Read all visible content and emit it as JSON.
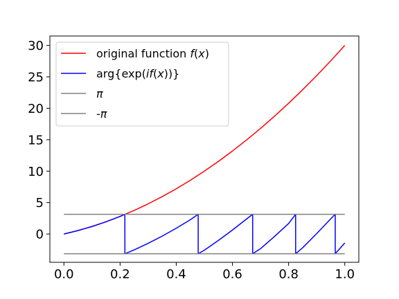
{
  "chart_data": {
    "type": "line",
    "xlim": [
      -0.05,
      1.05
    ],
    "ylim": [
      -4.5,
      31.5
    ],
    "xticks": [
      0.0,
      0.2,
      0.4,
      0.6,
      0.8,
      1.0
    ],
    "xtick_labels": [
      "0.0",
      "0.2",
      "0.4",
      "0.6",
      "0.8",
      "1.0"
    ],
    "yticks": [
      0,
      5,
      10,
      15,
      20,
      25,
      30
    ],
    "ytick_labels": [
      "0",
      "5",
      "10",
      "15",
      "20",
      "25",
      "30"
    ],
    "grid": false,
    "legend_position": "top-left",
    "series": [
      {
        "name": "original function f(x)",
        "legend_parts": [
          "original function ",
          "f",
          "(",
          "x",
          ")"
        ],
        "color": "#ff0000",
        "x": [
          0.0,
          0.05,
          0.1,
          0.15,
          0.2,
          0.25,
          0.3,
          0.35,
          0.4,
          0.45,
          0.5,
          0.55,
          0.6,
          0.65,
          0.7,
          0.75,
          0.8,
          0.85,
          0.9,
          0.95,
          1.0
        ],
        "y": [
          0.0,
          0.55,
          1.2,
          1.95,
          2.8,
          3.75,
          4.8,
          5.95,
          7.2,
          8.55,
          10.0,
          11.55,
          13.2,
          14.95,
          16.8,
          18.75,
          20.8,
          22.95,
          25.2,
          27.55,
          30.0
        ]
      },
      {
        "name": "arg{exp(if(x))}",
        "legend_parts": [
          "arg{exp(",
          "if",
          "(",
          "x",
          "))}"
        ],
        "color": "#0000ff",
        "x": [
          0.0,
          0.05,
          0.1,
          0.15,
          0.2,
          0.217,
          0.2171,
          0.25,
          0.3,
          0.35,
          0.4,
          0.45,
          0.478,
          0.4781,
          0.5,
          0.55,
          0.6,
          0.65,
          0.672,
          0.6721,
          0.7,
          0.75,
          0.8,
          0.825,
          0.8251,
          0.85,
          0.9,
          0.95,
          0.966,
          0.9661,
          1.0
        ],
        "y": [
          0.0,
          0.55,
          1.2,
          1.95,
          2.8,
          3.14,
          -3.14,
          -2.53,
          -1.48,
          -0.33,
          0.92,
          2.27,
          3.14,
          -3.14,
          -2.57,
          -1.02,
          0.63,
          2.38,
          3.14,
          -3.14,
          -2.33,
          -0.38,
          1.67,
          3.14,
          -3.14,
          -2.18,
          0.07,
          2.42,
          3.14,
          -3.14,
          -1.42
        ]
      },
      {
        "name": "π",
        "legend_parts": [
          "π"
        ],
        "color": "#808080",
        "x": [
          0.0,
          1.0
        ],
        "y": [
          3.14159,
          3.14159
        ]
      },
      {
        "name": "-π",
        "legend_parts": [
          "-π"
        ],
        "color": "#808080",
        "x": [
          0.0,
          1.0
        ],
        "y": [
          -3.14159,
          -3.14159
        ]
      }
    ]
  }
}
